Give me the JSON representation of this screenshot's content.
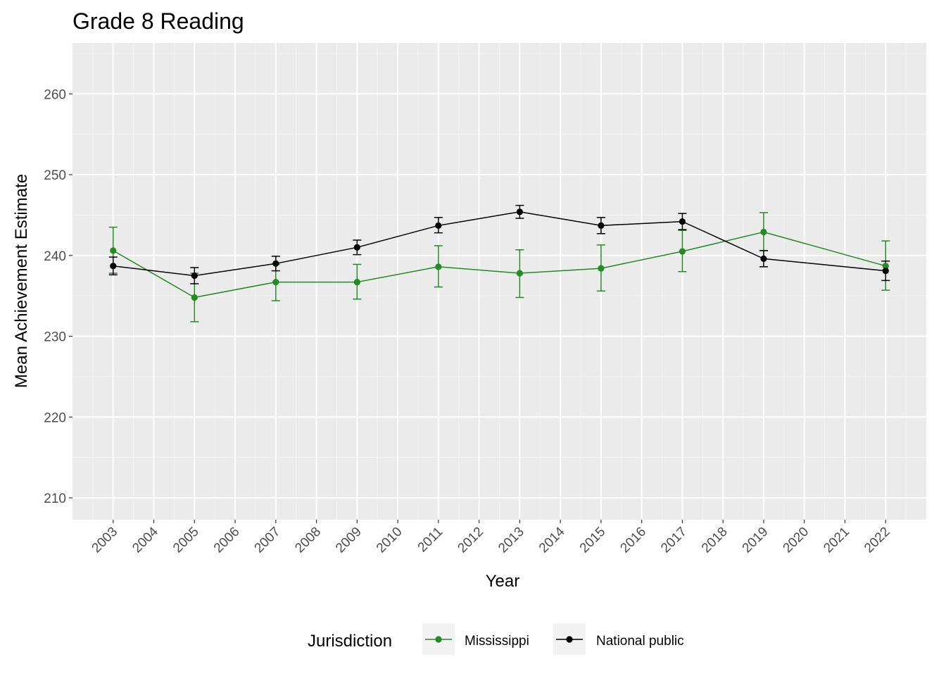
{
  "chart_data": {
    "type": "line",
    "title": "Grade 8 Reading",
    "xlabel": "Year",
    "ylabel": "Mean Achievement Estimate",
    "x_ticks": [
      "2003",
      "2004",
      "2005",
      "2006",
      "2007",
      "2008",
      "2009",
      "2010",
      "2011",
      "2012",
      "2013",
      "2014",
      "2015",
      "2016",
      "2017",
      "2018",
      "2019",
      "2020",
      "2021",
      "2022"
    ],
    "y_ticks": [
      210,
      220,
      230,
      240,
      250,
      260
    ],
    "xlim": [
      2002,
      2023
    ],
    "ylim": [
      207.3,
      266.3
    ],
    "grid": true,
    "legend": {
      "title": "Jurisdiction",
      "position": "bottom",
      "entries": [
        "Mississippi",
        "National public"
      ]
    },
    "series": [
      {
        "name": "Mississippi",
        "color": "#228b22",
        "points": [
          {
            "x": 2003,
            "y": 240.6,
            "lower": 237.8,
            "upper": 243.5
          },
          {
            "x": 2005,
            "y": 234.8,
            "lower": 231.8,
            "upper": 237.8
          },
          {
            "x": 2007,
            "y": 236.7,
            "lower": 234.4,
            "upper": 238.9
          },
          {
            "x": 2009,
            "y": 236.7,
            "lower": 234.6,
            "upper": 238.9
          },
          {
            "x": 2011,
            "y": 238.6,
            "lower": 236.1,
            "upper": 241.2
          },
          {
            "x": 2013,
            "y": 237.8,
            "lower": 234.8,
            "upper": 240.7
          },
          {
            "x": 2015,
            "y": 238.4,
            "lower": 235.6,
            "upper": 241.3
          },
          {
            "x": 2017,
            "y": 240.5,
            "lower": 238.0,
            "upper": 243.1
          },
          {
            "x": 2019,
            "y": 242.9,
            "lower": 240.6,
            "upper": 245.3
          },
          {
            "x": 2022,
            "y": 238.7,
            "lower": 235.7,
            "upper": 241.8
          }
        ]
      },
      {
        "name": "National public",
        "color": "#000000",
        "points": [
          {
            "x": 2003,
            "y": 238.7,
            "lower": 237.6,
            "upper": 239.8
          },
          {
            "x": 2005,
            "y": 237.5,
            "lower": 236.5,
            "upper": 238.5
          },
          {
            "x": 2007,
            "y": 239.0,
            "lower": 238.1,
            "upper": 239.9
          },
          {
            "x": 2009,
            "y": 241.0,
            "lower": 240.1,
            "upper": 241.9
          },
          {
            "x": 2011,
            "y": 243.7,
            "lower": 242.8,
            "upper": 244.7
          },
          {
            "x": 2013,
            "y": 245.4,
            "lower": 244.6,
            "upper": 246.2
          },
          {
            "x": 2015,
            "y": 243.7,
            "lower": 242.7,
            "upper": 244.7
          },
          {
            "x": 2017,
            "y": 244.2,
            "lower": 243.2,
            "upper": 245.2
          },
          {
            "x": 2019,
            "y": 239.6,
            "lower": 238.6,
            "upper": 240.6
          },
          {
            "x": 2022,
            "y": 238.1,
            "lower": 236.9,
            "upper": 239.3
          }
        ]
      }
    ]
  }
}
